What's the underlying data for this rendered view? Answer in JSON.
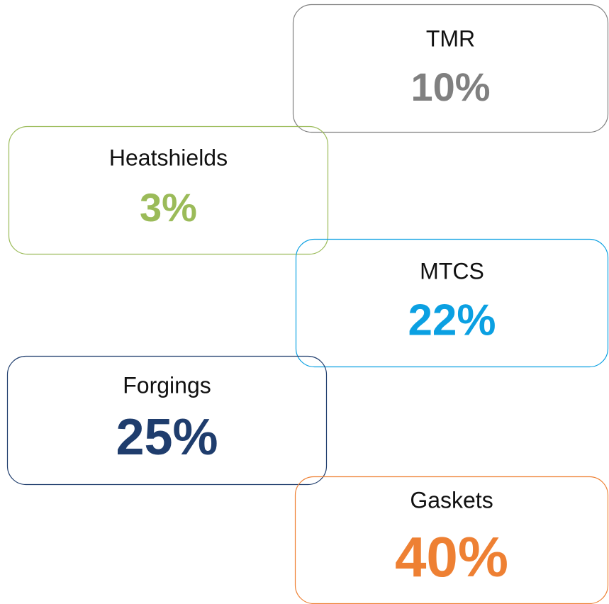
{
  "items": [
    {
      "label": "TMR",
      "value": "10%",
      "color": "#808080"
    },
    {
      "label": "Heatshields",
      "value": "3%",
      "color": "#9bbb59"
    },
    {
      "label": "MTCS",
      "value": "22%",
      "color": "#0ba0e2"
    },
    {
      "label": "Forgings",
      "value": "25%",
      "color": "#1f3d6d"
    },
    {
      "label": "Gaskets",
      "value": "40%",
      "color": "#ee8033"
    }
  ]
}
